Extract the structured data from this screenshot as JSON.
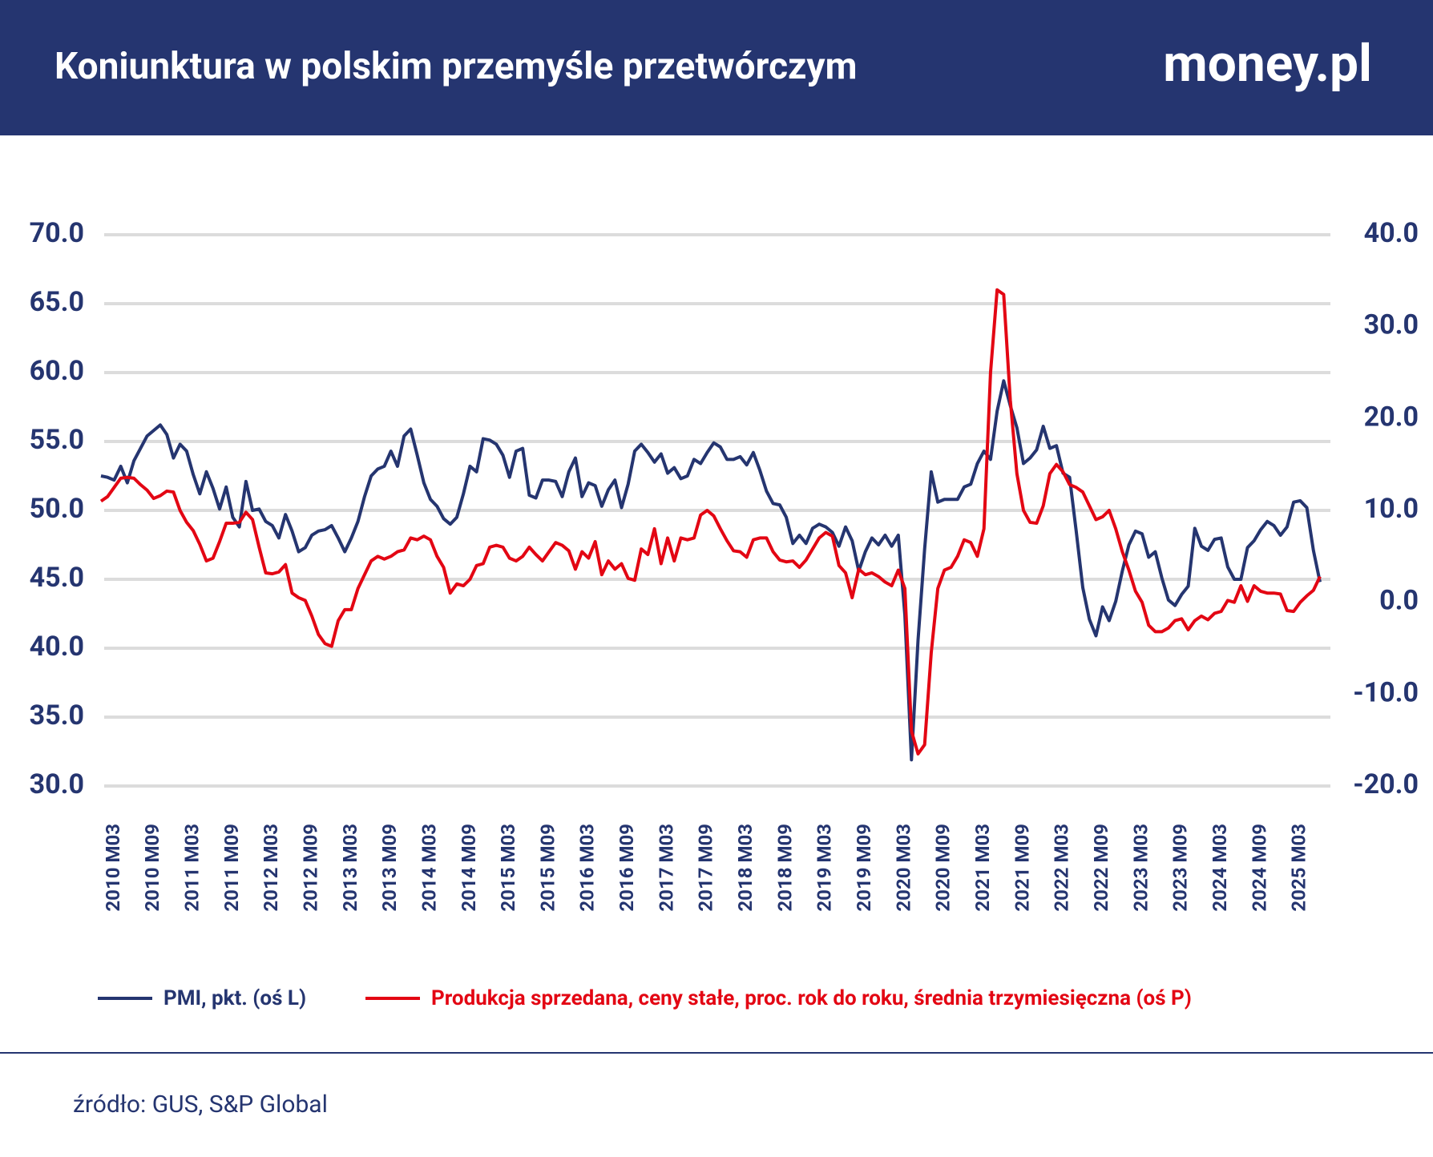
{
  "chart_data": {
    "type": "line",
    "title": "Koniunktura w polskim przemyśle przetwórczym",
    "brand": "money.pl",
    "source": "źródło: GUS, S&P Global",
    "categories": [
      null,
      null,
      "2010 M03",
      null,
      null,
      null,
      null,
      null,
      "2010 M09",
      null,
      null,
      null,
      null,
      null,
      "2011 M03",
      null,
      null,
      null,
      null,
      null,
      "2011 M09",
      null,
      null,
      null,
      null,
      null,
      "2012 M03",
      null,
      null,
      null,
      null,
      null,
      "2012 M09",
      null,
      null,
      null,
      null,
      null,
      "2013 M03",
      null,
      null,
      null,
      null,
      null,
      "2013 M09",
      null,
      null,
      null,
      null,
      null,
      "2014 M03",
      null,
      null,
      null,
      null,
      null,
      "2014 M09",
      null,
      null,
      null,
      null,
      null,
      "2015 M03",
      null,
      null,
      null,
      null,
      null,
      "2015 M09",
      null,
      null,
      null,
      null,
      null,
      "2016 M03",
      null,
      null,
      null,
      null,
      null,
      "2016 M09",
      null,
      null,
      null,
      null,
      null,
      "2017 M03",
      null,
      null,
      null,
      null,
      null,
      "2017 M09",
      null,
      null,
      null,
      null,
      null,
      "2018 M03",
      null,
      null,
      null,
      null,
      null,
      "2018 M09",
      null,
      null,
      null,
      null,
      null,
      "2019 M03",
      null,
      null,
      null,
      null,
      null,
      "2019 M09",
      null,
      null,
      null,
      null,
      null,
      "2020 M03",
      null,
      null,
      null,
      null,
      null,
      "2020 M09",
      null,
      null,
      null,
      null,
      null,
      "2021 M03",
      null,
      null,
      null,
      null,
      null,
      "2021 M09",
      null,
      null,
      null,
      null,
      null,
      "2022 M03",
      null,
      null,
      null,
      null,
      null,
      "2022 M09",
      null,
      null,
      null,
      null,
      null,
      "2023 M03",
      null,
      null,
      null,
      null,
      null,
      "2023 M09",
      null,
      null,
      null,
      null,
      null,
      "2024 M03",
      null,
      null,
      null,
      null,
      null,
      "2024 M09",
      null,
      null,
      null,
      null,
      null,
      "2025 M03",
      null,
      null,
      null
    ],
    "series": [
      {
        "name": "PMI, pkt. (oś L)",
        "color": "#253570",
        "axis": "y",
        "values": [
          52.5,
          52.4,
          52.2,
          53.2,
          52.0,
          53.6,
          54.5,
          55.4,
          55.8,
          56.2,
          55.5,
          53.8,
          54.8,
          54.3,
          52.6,
          51.2,
          52.8,
          51.6,
          50.1,
          51.7,
          49.5,
          48.8,
          52.1,
          50.0,
          50.1,
          49.2,
          48.9,
          48.0,
          49.7,
          48.5,
          47.0,
          47.3,
          48.2,
          48.5,
          48.6,
          48.9,
          48.0,
          47.0,
          48.0,
          49.2,
          51.0,
          52.5,
          53.0,
          53.2,
          54.3,
          53.2,
          55.4,
          55.9,
          54.0,
          52.0,
          50.8,
          50.3,
          49.4,
          49.0,
          49.5,
          51.2,
          53.2,
          52.8,
          55.2,
          55.1,
          54.8,
          54.0,
          52.4,
          54.3,
          54.5,
          51.1,
          50.9,
          52.2,
          52.2,
          52.1,
          51.0,
          52.8,
          53.8,
          51.0,
          52.0,
          51.8,
          50.3,
          51.5,
          52.2,
          50.2,
          51.9,
          54.3,
          54.8,
          54.2,
          53.5,
          54.1,
          52.7,
          53.1,
          52.3,
          52.5,
          53.7,
          53.4,
          54.2,
          54.9,
          54.6,
          53.7,
          53.7,
          53.9,
          53.3,
          54.2,
          52.9,
          51.4,
          50.5,
          50.4,
          49.5,
          47.6,
          48.2,
          47.6,
          48.7,
          49.0,
          48.8,
          48.4,
          47.4,
          48.8,
          47.8,
          45.6,
          47.0,
          48.0,
          47.5,
          48.2,
          47.4,
          48.2,
          42.4,
          31.9,
          40.6,
          47.2,
          52.8,
          50.6,
          50.8,
          50.8,
          50.8,
          51.7,
          51.9,
          53.4,
          54.3,
          53.7,
          57.2,
          59.4,
          57.6,
          56.0,
          53.4,
          53.8,
          54.4,
          56.1,
          54.5,
          54.7,
          52.7,
          52.4,
          48.5,
          44.4,
          42.1,
          40.9,
          43.0,
          42.0,
          43.4,
          45.6,
          47.5,
          48.5,
          48.3,
          46.6,
          47.0,
          45.1,
          43.5,
          43.1,
          43.9,
          44.5,
          48.7,
          47.4,
          47.1,
          47.9,
          48.0,
          45.9,
          45.0,
          45.0,
          47.3,
          47.8,
          48.6,
          49.2,
          48.9,
          48.2,
          48.8,
          50.6,
          50.7,
          50.2,
          47.1,
          44.8
        ]
      },
      {
        "name": "Produkcja sprzedana, ceny stałe, proc. rok do roku, średnia trzymiesięczna (oś P)",
        "color": "#e30613",
        "axis": "y2",
        "values": [
          11.0,
          11.5,
          12.5,
          13.5,
          13.6,
          13.5,
          12.8,
          12.2,
          11.3,
          11.6,
          12.1,
          12.0,
          10.0,
          8.7,
          7.8,
          6.3,
          4.5,
          4.8,
          6.6,
          8.6,
          8.6,
          8.7,
          9.8,
          9.0,
          6.0,
          3.2,
          3.1,
          3.3,
          4.1,
          1.0,
          0.5,
          0.2,
          -1.5,
          -3.5,
          -4.5,
          -4.8,
          -2.0,
          -0.8,
          -0.8,
          1.5,
          3.0,
          4.5,
          5.0,
          4.7,
          5.0,
          5.5,
          5.7,
          7.0,
          6.8,
          7.2,
          6.8,
          5.0,
          3.8,
          1.0,
          2.0,
          1.8,
          2.5,
          4.0,
          4.2,
          6.0,
          6.2,
          6.0,
          4.8,
          4.5,
          5.0,
          6.0,
          5.2,
          4.5,
          5.5,
          6.5,
          6.2,
          5.6,
          3.6,
          5.5,
          4.8,
          6.6,
          3.0,
          4.5,
          3.6,
          4.2,
          2.6,
          2.4,
          5.8,
          5.2,
          8.0,
          4.2,
          7.0,
          4.5,
          7.0,
          6.8,
          7.0,
          9.5,
          10.0,
          9.4,
          8.0,
          6.7,
          5.6,
          5.5,
          4.9,
          6.8,
          7.0,
          7.0,
          5.5,
          4.6,
          4.4,
          4.5,
          3.8,
          4.6,
          5.8,
          7.0,
          7.6,
          7.2,
          4.0,
          3.2,
          0.5,
          3.6,
          3.0,
          3.2,
          2.8,
          2.2,
          1.8,
          3.5,
          1.5,
          -14.0,
          -16.5,
          -15.5,
          -5.5,
          1.5,
          3.5,
          3.8,
          5.0,
          6.8,
          6.5,
          5.0,
          8.0,
          25.0,
          34.0,
          33.5,
          22.0,
          14.0,
          10.0,
          8.7,
          8.6,
          10.5,
          14.0,
          15.0,
          14.2,
          12.8,
          12.5,
          12.0,
          10.5,
          9.0,
          9.3,
          10.0,
          8.0,
          5.5,
          3.5,
          1.2,
          0.0,
          -2.5,
          -3.2,
          -3.2,
          -2.8,
          -2.0,
          -1.8,
          -3.0,
          -2.0,
          -1.5,
          -1.9,
          -1.2,
          -1.0,
          0.2,
          0.0,
          1.8,
          0.1,
          1.8,
          1.2,
          1.0,
          1.0,
          0.9,
          -0.9,
          -1.0,
          0.0,
          0.7,
          1.3,
          2.8
        ]
      }
    ],
    "ylim": [
      30,
      70
    ],
    "yticks": [
      {
        "value": 30,
        "label": "30.0"
      },
      {
        "value": 35,
        "label": "35.0"
      },
      {
        "value": 40,
        "label": "40.0"
      },
      {
        "value": 45,
        "label": "45.0"
      },
      {
        "value": 50,
        "label": "50.0"
      },
      {
        "value": 55,
        "label": "55.0"
      },
      {
        "value": 60,
        "label": "60.0"
      },
      {
        "value": 65,
        "label": "65.0"
      },
      {
        "value": 70,
        "label": "70.0"
      }
    ],
    "y2lim": [
      -20,
      40
    ],
    "y2ticks": [
      {
        "value": -20,
        "label": "-20.0"
      },
      {
        "value": -10,
        "label": "-10.0"
      },
      {
        "value": 0,
        "label": "0.0"
      },
      {
        "value": 10,
        "label": "10.0"
      },
      {
        "value": 20,
        "label": "20.0"
      },
      {
        "value": 30,
        "label": "30.0"
      },
      {
        "value": 40,
        "label": "40.0"
      }
    ],
    "grid": true
  }
}
